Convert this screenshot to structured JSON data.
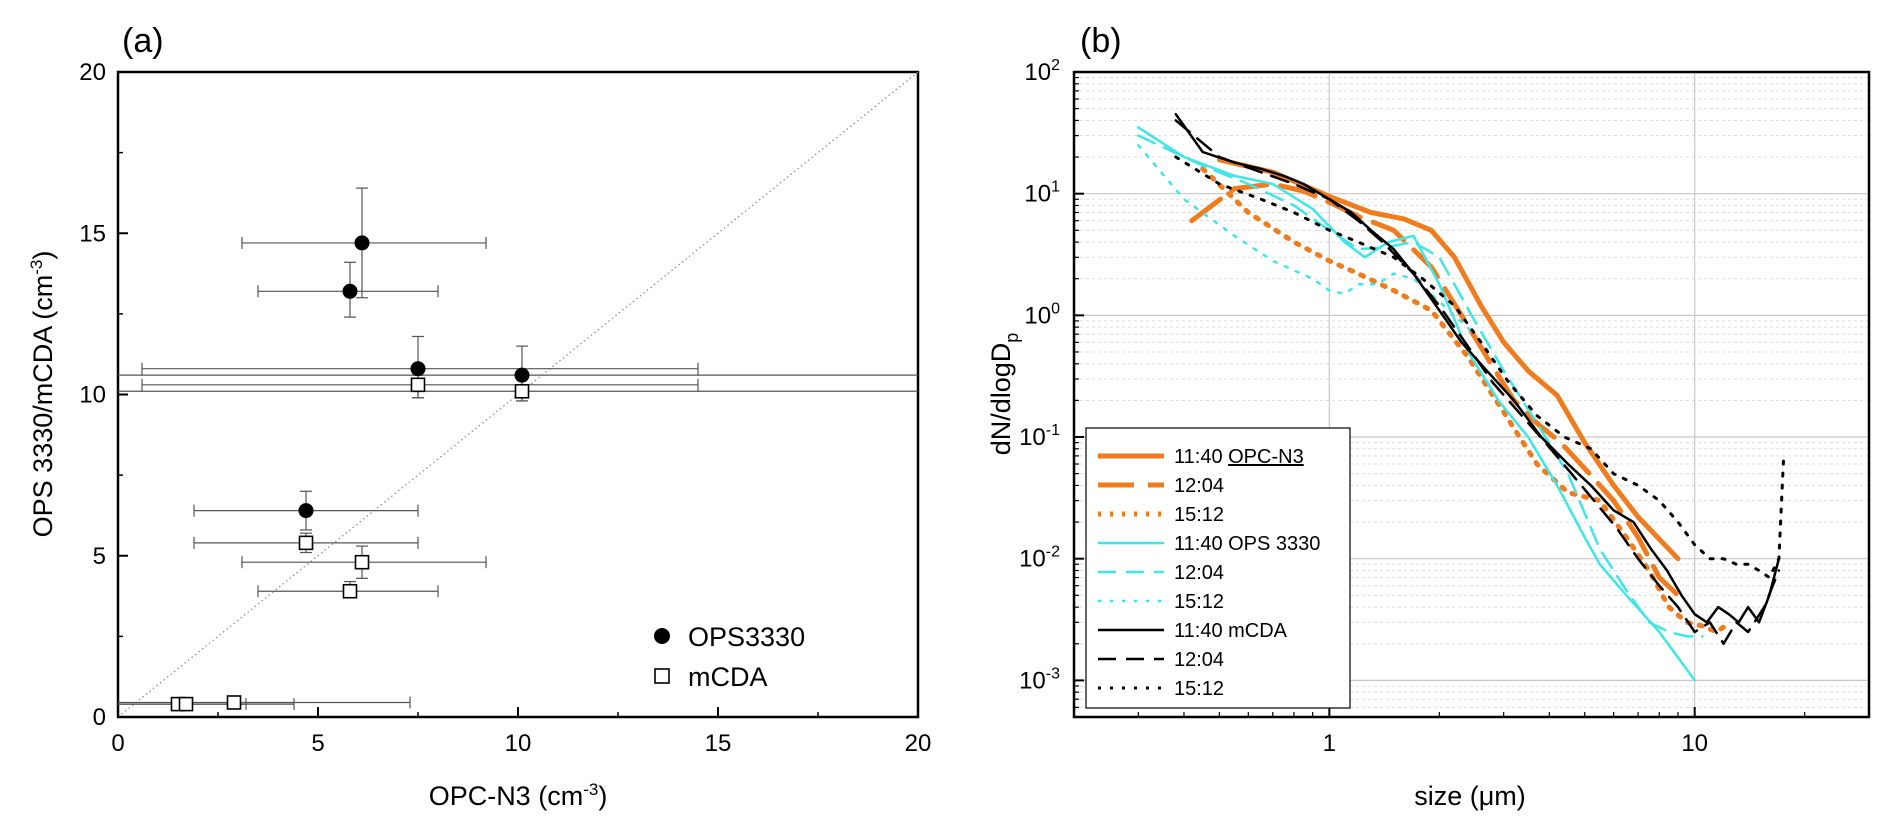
{
  "chart_data": [
    {
      "type": "scatter",
      "panel_label": "(a)",
      "xlabel": "OPC-N3 (cm",
      "ylabel": "OPS 3330/mCDA (cm",
      "unit_exp": "-3",
      "xlim": [
        0,
        20
      ],
      "ylim": [
        0,
        20
      ],
      "xticks": [
        "0",
        "5",
        "10",
        "15",
        "20"
      ],
      "yticks": [
        "0",
        "5",
        "10",
        "15",
        "20"
      ],
      "reference_line": "1:1",
      "legend_position": "bottom-right",
      "series": [
        {
          "name": "OPS3330",
          "marker": "filled-circle",
          "points": [
            {
              "x": 6.1,
              "y": 14.7,
              "xerr": [
                3.1,
                9.2
              ],
              "yerr": [
                13.0,
                16.4
              ]
            },
            {
              "x": 5.8,
              "y": 13.2,
              "xerr": [
                3.5,
                8.0
              ],
              "yerr": [
                12.4,
                14.1
              ]
            },
            {
              "x": 7.5,
              "y": 10.8,
              "xerr": [
                0.6,
                14.5
              ],
              "yerr": [
                9.9,
                11.8
              ]
            },
            {
              "x": 10.1,
              "y": 10.6,
              "xerr": [
                0,
                20
              ],
              "yerr": [
                9.8,
                11.5
              ]
            },
            {
              "x": 4.7,
              "y": 6.4,
              "xerr": [
                1.9,
                7.5
              ],
              "yerr": [
                5.8,
                7.0
              ]
            }
          ]
        },
        {
          "name": "mCDA",
          "marker": "open-square",
          "points": [
            {
              "x": 7.5,
              "y": 10.3,
              "xerr": [
                0.6,
                14.5
              ],
              "yerr": [
                9.9,
                10.6
              ]
            },
            {
              "x": 10.1,
              "y": 10.1,
              "xerr": [
                0,
                20
              ],
              "yerr": [
                9.8,
                10.5
              ]
            },
            {
              "x": 4.7,
              "y": 5.4,
              "xerr": [
                1.9,
                7.5
              ],
              "yerr": [
                5.1,
                5.7
              ]
            },
            {
              "x": 6.1,
              "y": 4.8,
              "xerr": [
                3.1,
                9.2
              ],
              "yerr": [
                4.3,
                5.3
              ]
            },
            {
              "x": 5.8,
              "y": 3.9,
              "xerr": [
                3.5,
                8.0
              ],
              "yerr": [
                3.7,
                4.2
              ]
            },
            {
              "x": 1.5,
              "y": 0.4,
              "xerr": [
                0,
                3.2
              ],
              "yerr": [
                0.35,
                0.45
              ]
            },
            {
              "x": 1.7,
              "y": 0.4,
              "xerr": [
                0,
                4.4
              ],
              "yerr": [
                0.35,
                0.45
              ]
            },
            {
              "x": 2.9,
              "y": 0.45,
              "xerr": [
                0,
                7.3
              ],
              "yerr": [
                0.4,
                0.5
              ]
            }
          ]
        }
      ]
    },
    {
      "type": "line",
      "panel_label": "(b)",
      "xlabel": "size (μm)",
      "ylabel_prefix": "dN/dlogD",
      "ylabel_sub": "p",
      "xscale": "log",
      "yscale": "log",
      "xlim": [
        0.2,
        30
      ],
      "ylim": [
        0.0005,
        100
      ],
      "xticks": [
        "1",
        "10"
      ],
      "ytick_exponents": [
        "-3",
        "-2",
        "-1",
        "0",
        "1",
        "2"
      ],
      "ytick_base": "10",
      "grid": true,
      "legend_position": "bottom-left",
      "colors": {
        "OPC-N3": "#f07c1e",
        "OPS 3330": "#3ee6e6",
        "mCDA": "#000000"
      },
      "series": [
        {
          "name": "11:40",
          "instrument": "OPC-N3",
          "legend_label": "11:40 ",
          "legend_suffix": "OPC-N3",
          "color": "#f07c1e",
          "dash": "solid",
          "width": 5,
          "x": [
            0.5,
            0.7,
            1.0,
            1.3,
            1.6,
            1.9,
            2.2,
            2.6,
            3.0,
            3.5,
            4.2,
            5.0,
            6.0,
            7.0,
            9.0
          ],
          "y": [
            19,
            15,
            9.5,
            7.0,
            6.2,
            5.0,
            3.0,
            1.2,
            0.6,
            0.35,
            0.22,
            0.09,
            0.04,
            0.022,
            0.01
          ]
        },
        {
          "name": "12:04",
          "instrument": "OPC-N3",
          "legend_label": "12:04",
          "color": "#f07c1e",
          "dash": "longdash",
          "width": 5,
          "x": [
            0.42,
            0.55,
            0.7,
            0.85,
            1.0,
            1.2,
            1.5,
            1.9,
            2.3,
            2.8,
            3.2,
            3.7,
            4.3,
            5.0,
            6.0,
            7.0,
            8.0,
            9.0
          ],
          "y": [
            6,
            11,
            12,
            10.5,
            8.5,
            6.5,
            5.0,
            2.5,
            1.0,
            0.38,
            0.2,
            0.13,
            0.09,
            0.055,
            0.03,
            0.015,
            0.007,
            0.005
          ]
        },
        {
          "name": "15:12",
          "instrument": "OPC-N3",
          "legend_label": "15:12",
          "color": "#f07c1e",
          "dash": "dot",
          "width": 5,
          "x": [
            0.45,
            0.6,
            0.8,
            1.0,
            1.2,
            1.5,
            1.9,
            2.4,
            3.0,
            3.7,
            4.5,
            5.5,
            6.5,
            7.5,
            8.5,
            9.5,
            10.5,
            11.5,
            12.5
          ],
          "y": [
            16,
            7,
            4,
            2.8,
            2.2,
            1.6,
            1.1,
            0.45,
            0.16,
            0.06,
            0.035,
            0.03,
            0.015,
            0.008,
            0.004,
            0.003,
            0.0028,
            0.0025,
            0.003
          ]
        },
        {
          "name": "11:40",
          "instrument": "OPS 3330",
          "legend_label": "11:40 OPS 3330",
          "color": "#3ee6e6",
          "dash": "solid",
          "width": 2.5,
          "x": [
            0.3,
            0.4,
            0.55,
            0.7,
            0.9,
            1.1,
            1.25,
            1.45,
            1.7,
            2.0,
            2.4,
            2.9,
            3.5,
            4.2,
            5.0,
            5.5,
            6.5,
            8.0,
            10.0
          ],
          "y": [
            35,
            20,
            14,
            12,
            7.5,
            4.0,
            3.0,
            4.0,
            4.5,
            1.8,
            0.5,
            0.2,
            0.1,
            0.04,
            0.015,
            0.009,
            0.005,
            0.0025,
            0.001
          ]
        },
        {
          "name": "12:04",
          "instrument": "OPS 3330",
          "legend_label": "12:04",
          "color": "#3ee6e6",
          "dash": "dash",
          "width": 2.5,
          "x": [
            0.3,
            0.45,
            0.6,
            0.8,
            1.0,
            1.2,
            1.4,
            1.7,
            2.0,
            2.5,
            3.0,
            3.7,
            4.5,
            5.5,
            6.5,
            7.5,
            8.5,
            9.5,
            10.5
          ],
          "y": [
            30,
            17,
            12,
            8,
            5,
            3.5,
            3.6,
            4.0,
            3.0,
            0.9,
            0.35,
            0.13,
            0.05,
            0.012,
            0.0055,
            0.003,
            0.0025,
            0.0023,
            0.0023
          ]
        },
        {
          "name": "15:12",
          "instrument": "OPS 3330",
          "legend_label": "15:12",
          "color": "#3ee6e6",
          "dash": "dot",
          "width": 2.5,
          "x": [
            0.3,
            0.4,
            0.55,
            0.7,
            0.9,
            1.0,
            1.1,
            1.2,
            1.35,
            1.5,
            1.7,
            2.0,
            2.5
          ],
          "y": [
            25,
            9,
            4.5,
            2.8,
            2.0,
            1.6,
            1.5,
            1.8,
            1.8,
            2.2,
            2.0,
            1.3,
            0.7
          ]
        },
        {
          "name": "11:40",
          "instrument": "mCDA",
          "legend_label": "11:40 mCDA",
          "color": "#000000",
          "dash": "solid",
          "width": 2.5,
          "x": [
            0.38,
            0.45,
            0.55,
            0.65,
            0.75,
            0.85,
            1.0,
            1.15,
            1.3,
            1.5,
            1.7,
            2.0,
            2.3,
            2.7,
            3.2,
            3.8,
            4.5,
            5.2,
            6.0,
            6.8,
            7.6,
            8.4,
            9.2,
            10.0,
            10.8,
            11.6,
            12.4,
            13.2,
            14.0,
            15.0,
            16.0,
            17.0
          ],
          "y": [
            45,
            22,
            18,
            16,
            14,
            12,
            9,
            7,
            5,
            3.5,
            2.2,
            1.1,
            0.6,
            0.35,
            0.2,
            0.1,
            0.06,
            0.04,
            0.025,
            0.02,
            0.012,
            0.008,
            0.005,
            0.0035,
            0.003,
            0.004,
            0.0035,
            0.003,
            0.004,
            0.003,
            0.005,
            0.01
          ]
        },
        {
          "name": "12:04",
          "instrument": "mCDA",
          "legend_label": "12:04",
          "color": "#000000",
          "dash": "dash",
          "width": 2.5,
          "x": [
            0.38,
            0.5,
            0.65,
            0.8,
            1.0,
            1.2,
            1.4,
            1.7,
            2.0,
            2.4,
            2.8,
            3.3,
            3.9,
            4.6,
            5.3,
            6.1,
            7.0,
            8.0,
            9.0,
            10.0,
            11.0,
            12.0,
            13.0,
            14.0,
            15.5,
            17.0
          ],
          "y": [
            40,
            20,
            15,
            12,
            9,
            6,
            4,
            2.2,
            1.2,
            0.55,
            0.28,
            0.16,
            0.09,
            0.05,
            0.03,
            0.018,
            0.01,
            0.006,
            0.004,
            0.0025,
            0.003,
            0.002,
            0.003,
            0.0025,
            0.004,
            0.008
          ]
        },
        {
          "name": "15:12",
          "instrument": "mCDA",
          "legend_label": "15:12",
          "color": "#000000",
          "dash": "dot",
          "width": 3,
          "x": [
            0.38,
            0.5,
            0.65,
            0.8,
            1.0,
            1.2,
            1.5,
            1.8,
            2.2,
            2.6,
            3.1,
            3.7,
            4.4,
            5.2,
            6.0,
            7.0,
            8.0,
            9.0,
            10.0,
            11.0,
            12.0,
            13.0,
            14.0,
            15.0,
            16.0,
            17.0,
            17.5
          ],
          "y": [
            20,
            12,
            9,
            7,
            5,
            4,
            3,
            2,
            1.2,
            0.6,
            0.28,
            0.15,
            0.1,
            0.08,
            0.05,
            0.04,
            0.03,
            0.02,
            0.013,
            0.01,
            0.01,
            0.009,
            0.009,
            0.008,
            0.007,
            0.01,
            0.065
          ]
        }
      ]
    }
  ]
}
